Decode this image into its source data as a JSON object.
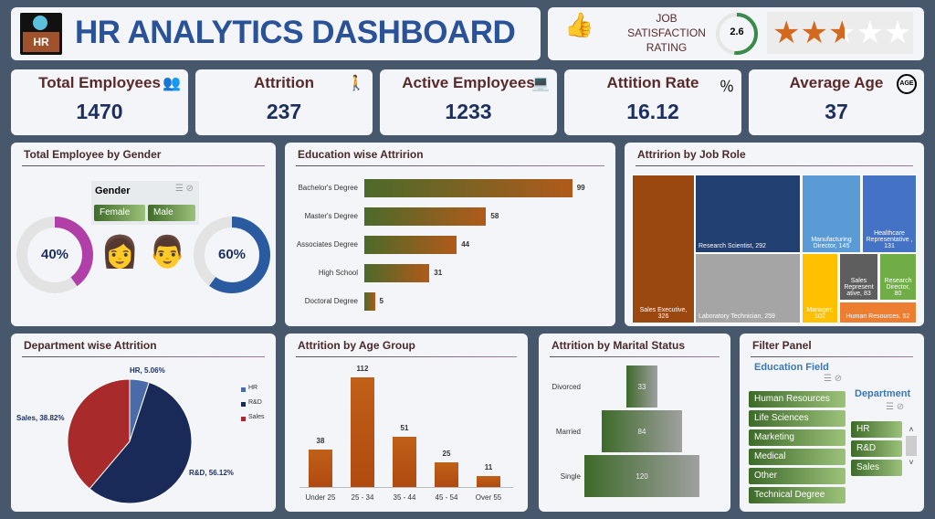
{
  "header": {
    "title": "HR ANALYTICS DASHBOARD",
    "logo_text": "HR"
  },
  "rating": {
    "label_lines": [
      "JOB",
      "SATISFACTION",
      "RATING"
    ],
    "value": "2.6",
    "value_num": 2.6,
    "max": 5
  },
  "kpis": [
    {
      "title": "Total Employees",
      "value": "1470",
      "icon": "people-group-icon",
      "glyph": "👥"
    },
    {
      "title": "Attrition",
      "value": "237",
      "icon": "people-leaving-icon",
      "glyph": "🚶"
    },
    {
      "title": "Active Employees",
      "value": "1233",
      "icon": "desk-worker-icon",
      "glyph": "💻"
    },
    {
      "title": "Attition Rate",
      "value": "16.12",
      "icon": "percent-person-icon",
      "glyph": "％"
    },
    {
      "title": "Average Age",
      "value": "37",
      "icon": "age-icon",
      "glyph": "AGE"
    }
  ],
  "gender": {
    "title": "Total Employee by Gender",
    "slicer_title": "Gender",
    "options": [
      "Female",
      "Male"
    ],
    "female_pct": "40%",
    "male_pct": "60%",
    "female": 40,
    "male": 60
  },
  "education": {
    "title": "Education wise Attririon",
    "chart_data": {
      "type": "bar",
      "categories": [
        "Bachelor's Degree",
        "Master's Degree",
        "Associates Degree",
        "High School",
        "Doctoral Degree"
      ],
      "values": [
        99,
        58,
        44,
        31,
        5
      ]
    }
  },
  "jobrole": {
    "title": "Attririon by Job Role",
    "chart_data": {
      "type": "treemap",
      "items": [
        {
          "label": "Sales Executive, 326",
          "value": 326,
          "color": "#9a4810"
        },
        {
          "label": "Research Scientist, 292",
          "value": 292,
          "color": "#223f72"
        },
        {
          "label": "Laboratory Technician, 259",
          "value": 259,
          "color": "#a5a5a5"
        },
        {
          "label": "Manufacturing Director, 145",
          "value": 145,
          "color": "#5b9bd5"
        },
        {
          "label": "Healthcare Representative , 131",
          "value": 131,
          "color": "#4472c4"
        },
        {
          "label": "Manager, 102",
          "value": 102,
          "color": "#ffc000"
        },
        {
          "label": "Sales Represent ative, 83",
          "value": 83,
          "color": "#5e5e5e"
        },
        {
          "label": "Research Director, 80",
          "value": 80,
          "color": "#70ad47"
        },
        {
          "label": "Human Resources, 52",
          "value": 52,
          "color": "#ed7d31"
        }
      ]
    }
  },
  "department": {
    "title": "Department wise Attrition",
    "chart_data": {
      "type": "pie",
      "categories": [
        "HR",
        "R&D",
        "Sales"
      ],
      "values": [
        5.06,
        56.12,
        38.82
      ],
      "labels": [
        "HR, 5.06%",
        "R&D, 56.12%",
        "Sales, 38.82%"
      ],
      "colors": [
        "#4a6aa8",
        "#1a2a58",
        "#a82a2a"
      ],
      "legend": "right"
    }
  },
  "age": {
    "title": "Attrition by Age Group",
    "chart_data": {
      "type": "bar",
      "categories": [
        "Under 25",
        "25 - 34",
        "35 - 44",
        "45 - 54",
        "Over 55"
      ],
      "values": [
        38,
        112,
        51,
        25,
        11
      ]
    }
  },
  "marital": {
    "title": "Attrition by Marital Status",
    "chart_data": {
      "type": "bar",
      "categories": [
        "Divorced",
        "Married",
        "Single"
      ],
      "values": [
        33,
        84,
        120
      ]
    }
  },
  "filter": {
    "title": "Filter Panel",
    "edu_title": "Education Field",
    "edu_options": [
      "Human Resources",
      "Life Sciences",
      "Marketing",
      "Medical",
      "Other",
      "Technical Degree"
    ],
    "dept_title": "Department",
    "dept_options": [
      "HR",
      "R&D",
      "Sales"
    ]
  }
}
